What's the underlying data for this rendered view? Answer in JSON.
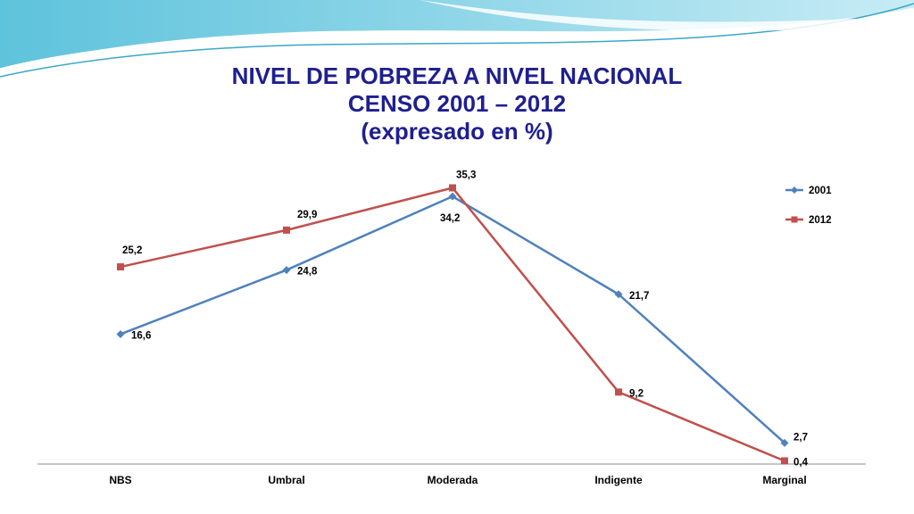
{
  "colors": {
    "series_2001": "#4f81bd",
    "series_2012": "#c0504d",
    "title": "#1f1f8f"
  },
  "chart_data": {
    "type": "line",
    "title_lines": [
      "NIVEL DE POBREZA A NIVEL NACIONAL",
      "CENSO 2001 – 2012",
      "(expresado en %)"
    ],
    "categories": [
      "NBS",
      "Umbral",
      "Moderada",
      "Indigente",
      "Marginal"
    ],
    "series": [
      {
        "name": "2001",
        "values": [
          16.6,
          24.8,
          34.2,
          21.7,
          2.7
        ],
        "labels": [
          "16,6",
          "24,8",
          "34,2",
          "21,7",
          "2,7"
        ],
        "color": "#4f81bd",
        "marker": "diamond"
      },
      {
        "name": "2012",
        "values": [
          25.2,
          29.9,
          35.3,
          9.2,
          0.4
        ],
        "labels": [
          "25,2",
          "29,9",
          "35,3",
          "9,2",
          "0,4"
        ],
        "color": "#c0504d",
        "marker": "square"
      }
    ],
    "ylim": [
      0,
      36.5
    ],
    "grid": false,
    "legend": "top-right",
    "xlabel": "",
    "ylabel": ""
  }
}
